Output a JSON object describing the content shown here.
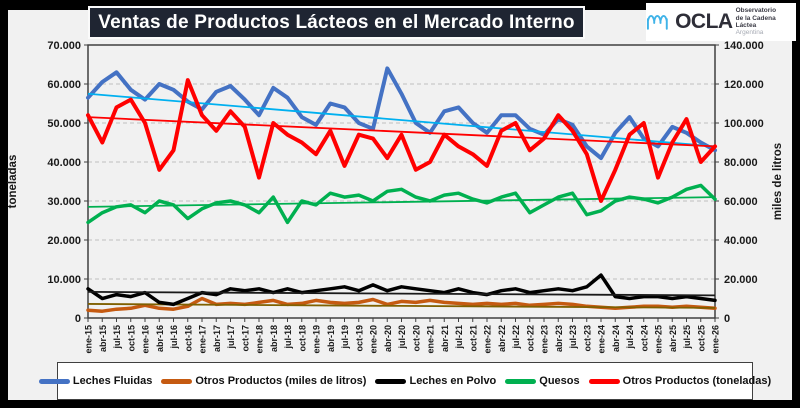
{
  "title": "Ventas de Productos Lácteos en el Mercado Interno",
  "logo": {
    "name": "OCLA",
    "org_line1": "Observatorio",
    "org_line2": "de la Cadena Láctea",
    "org_line3": "Argentina",
    "wave_color": "#3fb3e8"
  },
  "legend": {
    "items": [
      {
        "label": "Leches Fluidas",
        "color": "#4472C4"
      },
      {
        "label": "Otros Productos (miles de litros)",
        "color": "#C55A11"
      },
      {
        "label": "Leches en Polvo",
        "color": "#000000"
      },
      {
        "label": "Quesos",
        "color": "#00B050"
      },
      {
        "label": "Otros Productos (toneladas)",
        "color": "#FF0000"
      }
    ]
  },
  "chart_data": {
    "type": "line",
    "title": "Ventas de Productos Lácteos en el Mercado Interno",
    "grid": "dashed horizontal",
    "legend_position": "bottom",
    "left_axis": {
      "label": "toneladas",
      "min": 0,
      "max": 70000,
      "tick_labels": [
        "0",
        "10.000",
        "20.000",
        "30.000",
        "40.000",
        "50.000",
        "60.000",
        "70.000"
      ]
    },
    "right_axis": {
      "label": "miles de litros",
      "min": 0,
      "max": 140000,
      "tick_labels": [
        "0",
        "20.000",
        "40.000",
        "60.000",
        "80.000",
        "100.000",
        "120.000",
        "140.000"
      ]
    },
    "x_labels": [
      "ene-15",
      "abr-15",
      "jul-15",
      "oct-15",
      "ene-16",
      "abr-16",
      "jul-16",
      "oct-16",
      "ene-17",
      "abr-17",
      "jul-17",
      "oct-17",
      "ene-18",
      "abr-18",
      "jul-18",
      "oct-18",
      "ene-19",
      "abr-19",
      "jul-19",
      "oct-19",
      "ene-20",
      "abr-20",
      "jul-20",
      "oct-20",
      "ene-21",
      "abr-21",
      "jul-21",
      "oct-21",
      "ene-22",
      "abr-22",
      "jul-22",
      "oct-22",
      "ene-23",
      "abr-23",
      "jul-23",
      "oct-23",
      "ene-24",
      "abr-24",
      "jul-24",
      "oct-24",
      "ene-25",
      "abr-25",
      "jul-25",
      "oct-25",
      "ene-26"
    ],
    "series": [
      {
        "name": "Leches Fluidas",
        "color": "#4472C4",
        "axis": "right",
        "width": 4,
        "values": [
          113000,
          121000,
          126000,
          117000,
          112000,
          120000,
          117000,
          111000,
          107000,
          116000,
          119000,
          112000,
          104000,
          118000,
          113000,
          103000,
          99000,
          110000,
          108000,
          100000,
          97000,
          128000,
          115000,
          100000,
          95000,
          106000,
          108000,
          100000,
          95000,
          104000,
          104000,
          97000,
          94000,
          102000,
          99000,
          88000,
          82000,
          95000,
          103000,
          92000,
          88000,
          98000,
          95000,
          90000,
          86000
        ]
      },
      {
        "name": "Otros Productos (miles de litros)",
        "color": "#C55A11",
        "axis": "right",
        "width": 3.5,
        "values": [
          4000,
          3500,
          4500,
          5000,
          6500,
          5000,
          4500,
          6000,
          10000,
          7000,
          7500,
          7000,
          8000,
          9000,
          7000,
          7500,
          9000,
          8000,
          7500,
          8000,
          9500,
          7000,
          8500,
          8000,
          9000,
          8000,
          7500,
          7000,
          7500,
          7000,
          7500,
          6500,
          7000,
          7500,
          7000,
          6000,
          5500,
          5000,
          5500,
          6000,
          6000,
          5500,
          6000,
          5500,
          5000
        ]
      },
      {
        "name": "Leches en Polvo",
        "color": "#000000",
        "axis": "left",
        "width": 3.5,
        "values": [
          7500,
          5000,
          6000,
          5500,
          6500,
          4000,
          3500,
          5000,
          6500,
          6000,
          7500,
          7000,
          7500,
          6500,
          7500,
          6500,
          7000,
          7500,
          8000,
          7000,
          8500,
          7000,
          8000,
          7500,
          7000,
          6500,
          7500,
          6500,
          6000,
          7000,
          7500,
          6500,
          7000,
          7500,
          7000,
          8000,
          11000,
          5500,
          5000,
          5500,
          5500,
          5000,
          5500,
          5000,
          4500
        ]
      },
      {
        "name": "Quesos",
        "color": "#00B050",
        "axis": "left",
        "width": 3.5,
        "values": [
          24500,
          27000,
          28500,
          29000,
          27000,
          30000,
          29000,
          25500,
          28000,
          29500,
          30000,
          29000,
          27000,
          31000,
          24500,
          30000,
          29000,
          32000,
          31000,
          31500,
          30000,
          32500,
          33000,
          31000,
          30000,
          31500,
          32000,
          30500,
          29500,
          31000,
          32000,
          27000,
          29000,
          31000,
          32000,
          26500,
          27500,
          30000,
          31000,
          30500,
          29500,
          31000,
          33000,
          34000,
          30500
        ]
      },
      {
        "name": "Otros Productos (toneladas)",
        "color": "#FF0000",
        "axis": "left",
        "width": 4,
        "values": [
          52000,
          45000,
          54000,
          56000,
          50000,
          38000,
          43000,
          61000,
          52000,
          48000,
          53000,
          49000,
          36000,
          50000,
          47000,
          45000,
          42000,
          48000,
          39000,
          47000,
          46000,
          41000,
          47000,
          38000,
          40000,
          47000,
          44000,
          42000,
          39000,
          48000,
          50000,
          43000,
          46000,
          52000,
          48000,
          42000,
          30000,
          38000,
          47000,
          50000,
          36000,
          45000,
          51000,
          40000,
          44000
        ]
      }
    ],
    "trendlines": [
      {
        "series": "Leches Fluidas",
        "color": "#00B0F0",
        "axis": "right",
        "start": 115000,
        "end": 88000
      },
      {
        "series": "Otros Productos (miles de litros)",
        "color": "#7F6000",
        "axis": "right",
        "start": 7200,
        "end": 5200
      },
      {
        "series": "Leches en Polvo",
        "color": "#1a1a1a",
        "axis": "left",
        "start": 6700,
        "end": 5800
      },
      {
        "series": "Quesos",
        "color": "#00B050",
        "axis": "left",
        "start": 28500,
        "end": 31000
      },
      {
        "series": "Otros Productos (toneladas)",
        "color": "#FF0000",
        "axis": "left",
        "start": 51500,
        "end": 44000
      }
    ]
  }
}
